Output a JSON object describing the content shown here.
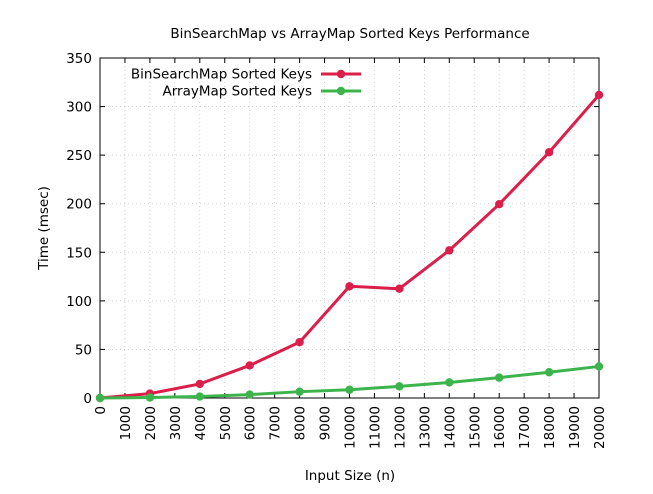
{
  "chart_data": {
    "type": "line",
    "title": "BinSearchMap vs ArrayMap Sorted Keys Performance",
    "xlabel": "Input Size (n)",
    "ylabel": "Time (msec)",
    "xlim": [
      0,
      20000
    ],
    "ylim": [
      0,
      350
    ],
    "x_ticks": [
      "0",
      "1000",
      "2000",
      "3000",
      "4000",
      "5000",
      "6000",
      "7000",
      "8000",
      "9000",
      "10000",
      "11000",
      "12000",
      "13000",
      "14000",
      "15000",
      "16000",
      "17000",
      "18000",
      "19000",
      "20000"
    ],
    "y_ticks": [
      "0",
      "50",
      "100",
      "150",
      "200",
      "250",
      "300",
      "350"
    ],
    "grid": true,
    "legend_position": "top-left",
    "x": [
      0,
      2000,
      4000,
      6000,
      8000,
      10000,
      12000,
      14000,
      16000,
      18000,
      20000
    ],
    "series": [
      {
        "name": "BinSearchMap Sorted Keys",
        "color": "#dc1e4a",
        "values": [
          0,
          4.5,
          14.5,
          33.5,
          57.5,
          115,
          112.5,
          152,
          199.5,
          253,
          312
        ]
      },
      {
        "name": "ArrayMap Sorted Keys",
        "color": "#3cb44b",
        "values": [
          0,
          0.5,
          1.5,
          3.5,
          6.5,
          8.5,
          12,
          16,
          21,
          26.5,
          32.5
        ]
      }
    ]
  }
}
